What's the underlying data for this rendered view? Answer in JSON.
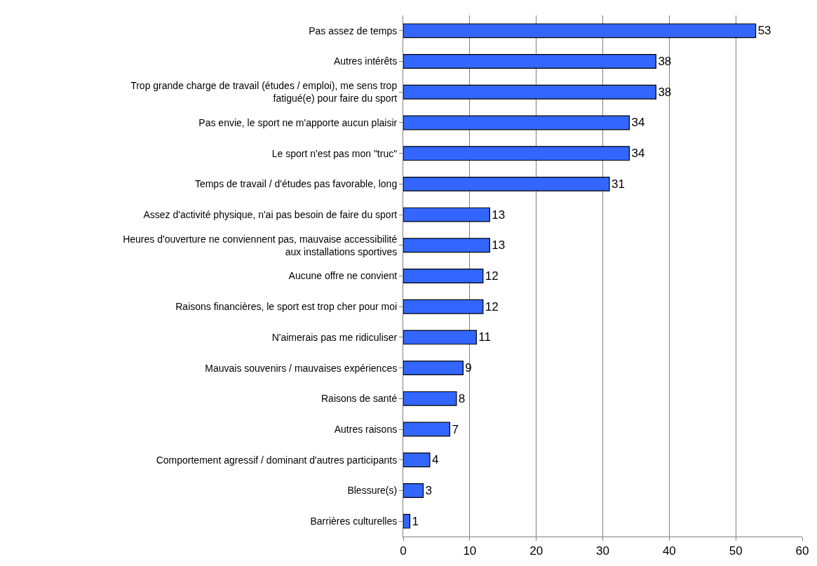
{
  "chart_data": {
    "type": "bar",
    "orientation": "horizontal",
    "categories": [
      "Pas assez de temps",
      "Autres intérêts",
      "Trop grande charge de travail (études / emploi), me sens trop fatigué(e) pour faire du sport",
      "Pas envie, le sport ne m'apporte aucun plaisir",
      "Le sport n'est pas mon \"truc\"",
      "Temps de travail / d'études pas favorable, long",
      "Assez d'activité physique, n'ai pas besoin de faire du sport",
      "Heures d'ouverture ne conviennent pas, mauvaise accessibilité aux installations sportives",
      "Aucune offre ne convient",
      "Raisons financières, le sport est trop cher pour moi",
      "N'aimerais pas me ridiculiser",
      "Mauvais souvenirs / mauvaises expériences",
      "Raisons de santé",
      "Autres raisons",
      "Comportement agressif / dominant d'autres participants",
      "Blessure(s)",
      "Barrières culturelles"
    ],
    "values": [
      53,
      38,
      38,
      34,
      34,
      31,
      13,
      13,
      12,
      12,
      11,
      9,
      8,
      7,
      4,
      3,
      1
    ],
    "color": "#3366ff",
    "data_labels": true,
    "xlim": [
      0,
      60
    ],
    "xticks": [
      0,
      10,
      20,
      30,
      40,
      50,
      60
    ],
    "grid": "x"
  }
}
